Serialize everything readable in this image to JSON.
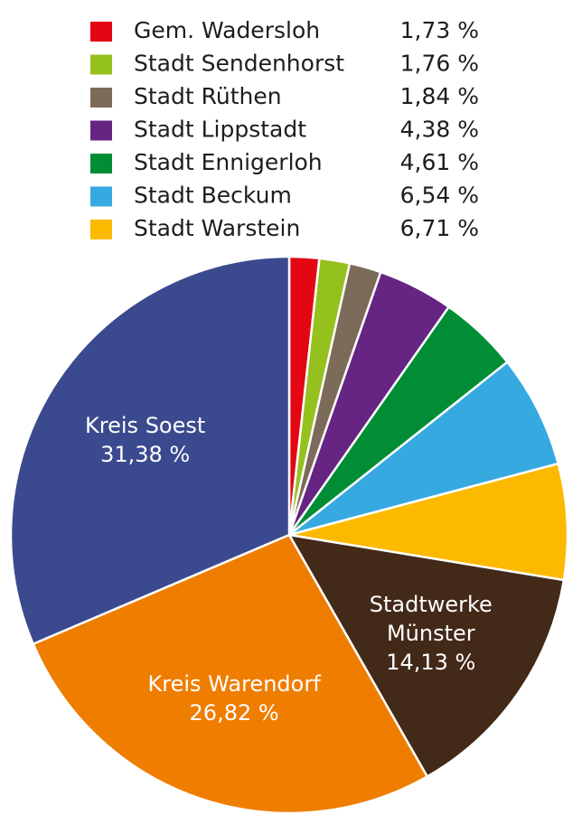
{
  "chart_data": {
    "type": "pie",
    "categories": [
      "Gem. Wadersloh",
      "Stadt Sendenhorst",
      "Stadt Rüthen",
      "Stadt Lippstadt",
      "Stadt Ennigerloh",
      "Stadt Beckum",
      "Stadt Warstein",
      "Stadtwerke Münster",
      "Kreis Warendorf",
      "Kreis Soest"
    ],
    "values": [
      1.73,
      1.76,
      1.84,
      4.38,
      4.61,
      6.54,
      6.71,
      14.13,
      26.82,
      31.38
    ],
    "value_labels": [
      "1,73 %",
      "1,76 %",
      "1,84 %",
      "4,38 %",
      "4,61 %",
      "6,54 %",
      "6,71 %",
      "14,13 %",
      "26,82 %",
      "31,38 %"
    ],
    "colors": [
      "#e30613",
      "#95c11f",
      "#7d6b5a",
      "#662483",
      "#008d36",
      "#36a9e1",
      "#fbb900",
      "#432918",
      "#ef7d00",
      "#3b4a8f"
    ]
  }
}
